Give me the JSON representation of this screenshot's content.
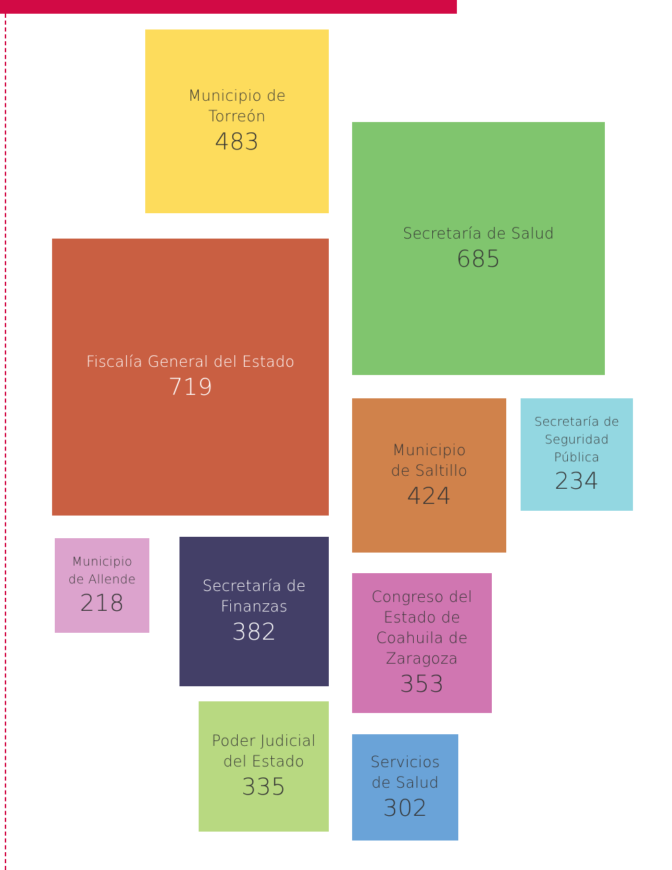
{
  "items": [
    {
      "label": [
        "Municipio de",
        "Torreón"
      ],
      "value": "483",
      "color": "#fddc5c"
    },
    {
      "label": [
        "Secretaría de Salud"
      ],
      "value": "685",
      "color": "#80c56e"
    },
    {
      "label": [
        "Fiscalía General del Estado"
      ],
      "value": "719",
      "color": "#c95f42"
    },
    {
      "label": [
        "Municipio",
        "de Saltillo"
      ],
      "value": "424",
      "color": "#d0824b"
    },
    {
      "label": [
        "Secretaría de",
        "Seguridad",
        "Pública"
      ],
      "value": "234",
      "color": "#93d7e1"
    },
    {
      "label": [
        "Municipio",
        "de Allende"
      ],
      "value": "218",
      "color": "#dca3cd"
    },
    {
      "label": [
        "Secretaría de",
        "Finanzas"
      ],
      "value": "382",
      "color": "#433f67"
    },
    {
      "label": [
        "Congreso del",
        "Estado de",
        "Coahuila de",
        "Zaragoza"
      ],
      "value": "353",
      "color": "#d076b1"
    },
    {
      "label": [
        "Poder Judicial",
        "del Estado"
      ],
      "value": "335",
      "color": "#b8d981"
    },
    {
      "label": [
        "Servicios",
        "de Salud"
      ],
      "value": "302",
      "color": "#6aa3d8"
    }
  ]
}
